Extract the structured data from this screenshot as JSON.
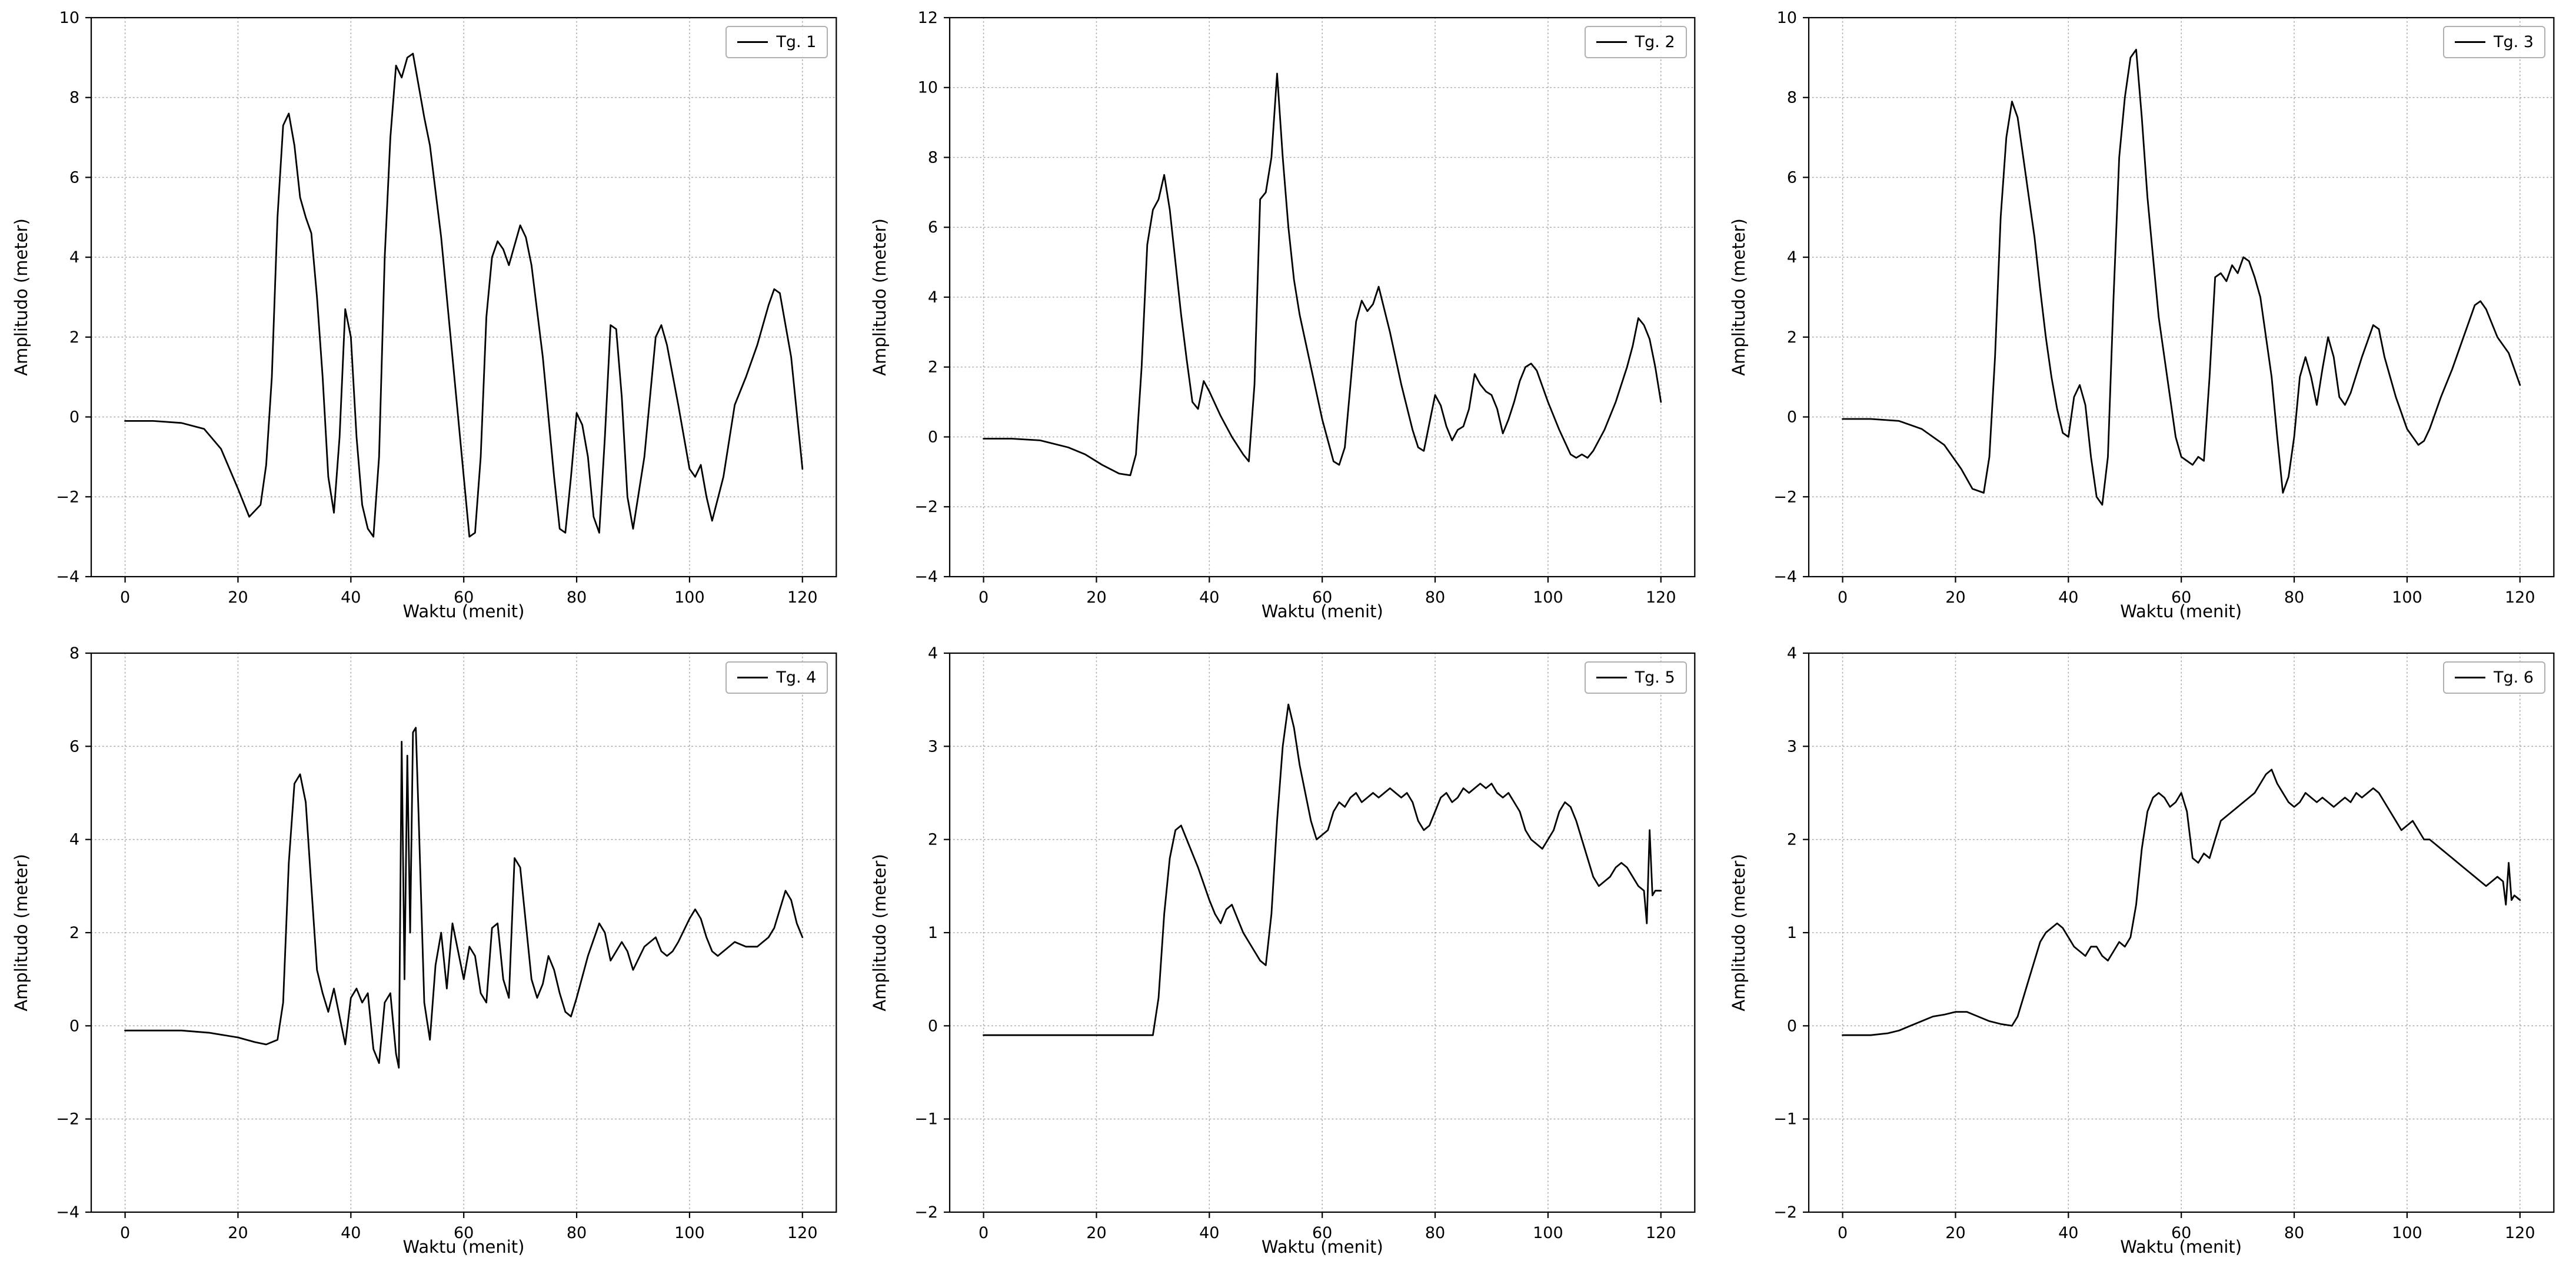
{
  "page": {
    "background": "#ffffff"
  },
  "style": {
    "line_color": "#000000",
    "grid_color": "#ababab",
    "spine_color": "#000000",
    "legend_border": "#b0b0b0"
  },
  "chart_data": [
    {
      "type": "line",
      "legend": "Tg. 1",
      "xlabel": "Waktu (menit)",
      "ylabel": "Amplitudo (meter)",
      "xlim": [
        -6,
        126
      ],
      "ylim": [
        -4,
        10
      ],
      "xticks": [
        0,
        20,
        40,
        60,
        80,
        100,
        120
      ],
      "yticks": [
        -4,
        -2,
        0,
        2,
        4,
        6,
        8,
        10
      ],
      "x": [
        0,
        5,
        10,
        14,
        17,
        20,
        22,
        24,
        25,
        26,
        27,
        28,
        29,
        30,
        31,
        32,
        33,
        34,
        35,
        36,
        37,
        38,
        39,
        40,
        41,
        42,
        43,
        44,
        45,
        46,
        47,
        48,
        49,
        50,
        51,
        52,
        53,
        54,
        56,
        58,
        60,
        61,
        62,
        63,
        64,
        65,
        66,
        67,
        68,
        69,
        70,
        71,
        72,
        74,
        76,
        77,
        78,
        79,
        80,
        81,
        82,
        83,
        84,
        85,
        86,
        87,
        88,
        89,
        90,
        92,
        94,
        95,
        96,
        98,
        100,
        101,
        102,
        103,
        104,
        106,
        108,
        110,
        112,
        114,
        115,
        116,
        118,
        120
      ],
      "y": [
        -0.1,
        -0.1,
        -0.15,
        -0.3,
        -0.8,
        -1.8,
        -2.5,
        -2.2,
        -1.2,
        1.0,
        5.0,
        7.3,
        7.6,
        6.8,
        5.5,
        5.0,
        4.6,
        3.0,
        1.0,
        -1.5,
        -2.4,
        -0.5,
        2.7,
        2.0,
        -0.5,
        -2.2,
        -2.8,
        -3.0,
        -1.0,
        4.0,
        7.0,
        8.8,
        8.5,
        9.0,
        9.1,
        8.3,
        7.5,
        6.8,
        4.5,
        1.5,
        -1.5,
        -3.0,
        -2.9,
        -1.0,
        2.5,
        4.0,
        4.4,
        4.2,
        3.8,
        4.3,
        4.8,
        4.5,
        3.8,
        1.5,
        -1.5,
        -2.8,
        -2.9,
        -1.5,
        0.1,
        -0.2,
        -1.0,
        -2.5,
        -2.9,
        -0.5,
        2.3,
        2.2,
        0.5,
        -2.0,
        -2.8,
        -1.0,
        2.0,
        2.3,
        1.8,
        0.3,
        -1.3,
        -1.5,
        -1.2,
        -2.0,
        -2.6,
        -1.5,
        0.3,
        1.0,
        1.8,
        2.8,
        3.2,
        3.1,
        1.5,
        -1.3
      ]
    },
    {
      "type": "line",
      "legend": "Tg. 2",
      "xlabel": "Waktu (menit)",
      "ylabel": "Amplitudo (meter)",
      "xlim": [
        -6,
        126
      ],
      "ylim": [
        -4,
        12
      ],
      "xticks": [
        0,
        20,
        40,
        60,
        80,
        100,
        120
      ],
      "yticks": [
        -4,
        -2,
        0,
        2,
        4,
        6,
        8,
        10,
        12
      ],
      "x": [
        0,
        5,
        10,
        15,
        18,
        21,
        24,
        26,
        27,
        28,
        29,
        30,
        31,
        32,
        33,
        34,
        35,
        36,
        37,
        38,
        39,
        40,
        42,
        44,
        46,
        47,
        48,
        49,
        50,
        51,
        52,
        53,
        54,
        55,
        56,
        58,
        60,
        62,
        63,
        64,
        65,
        66,
        67,
        68,
        69,
        70,
        72,
        74,
        76,
        77,
        78,
        79,
        80,
        81,
        82,
        83,
        84,
        85,
        86,
        87,
        88,
        89,
        90,
        91,
        92,
        93,
        94,
        95,
        96,
        97,
        98,
        100,
        102,
        104,
        105,
        106,
        107,
        108,
        110,
        112,
        114,
        115,
        116,
        117,
        118,
        119,
        120
      ],
      "y": [
        -0.05,
        -0.05,
        -0.1,
        -0.3,
        -0.5,
        -0.8,
        -1.05,
        -1.1,
        -0.5,
        2.0,
        5.5,
        6.5,
        6.8,
        7.5,
        6.5,
        5.0,
        3.5,
        2.2,
        1.0,
        0.8,
        1.6,
        1.3,
        0.6,
        0.0,
        -0.5,
        -0.7,
        1.5,
        6.8,
        7.0,
        8.0,
        10.4,
        8.0,
        6.0,
        4.5,
        3.5,
        2.0,
        0.5,
        -0.7,
        -0.8,
        -0.3,
        1.5,
        3.3,
        3.9,
        3.6,
        3.8,
        4.3,
        3.0,
        1.5,
        0.2,
        -0.3,
        -0.4,
        0.4,
        1.2,
        0.9,
        0.3,
        -0.1,
        0.2,
        0.3,
        0.8,
        1.8,
        1.5,
        1.3,
        1.2,
        0.8,
        0.1,
        0.5,
        1.0,
        1.6,
        2.0,
        2.1,
        1.9,
        1.0,
        0.2,
        -0.5,
        -0.6,
        -0.5,
        -0.6,
        -0.4,
        0.2,
        1.0,
        2.0,
        2.6,
        3.4,
        3.2,
        2.8,
        2.0,
        1.0
      ]
    },
    {
      "type": "line",
      "legend": "Tg. 3",
      "xlabel": "Waktu (menit)",
      "ylabel": "Amplitudo (meter)",
      "xlim": [
        -6,
        126
      ],
      "ylim": [
        -4,
        10
      ],
      "xticks": [
        0,
        20,
        40,
        60,
        80,
        100,
        120
      ],
      "yticks": [
        -4,
        -2,
        0,
        2,
        4,
        6,
        8,
        10
      ],
      "x": [
        0,
        5,
        10,
        14,
        18,
        21,
        23,
        25,
        26,
        27,
        28,
        29,
        30,
        31,
        32,
        33,
        34,
        35,
        36,
        37,
        38,
        39,
        40,
        41,
        42,
        43,
        44,
        45,
        46,
        47,
        48,
        49,
        50,
        51,
        52,
        53,
        54,
        55,
        56,
        58,
        59,
        60,
        61,
        62,
        63,
        64,
        65,
        66,
        67,
        68,
        69,
        70,
        71,
        72,
        73,
        74,
        76,
        77,
        78,
        79,
        80,
        81,
        82,
        83,
        84,
        85,
        86,
        87,
        88,
        89,
        90,
        92,
        94,
        95,
        96,
        98,
        100,
        102,
        103,
        104,
        106,
        108,
        110,
        112,
        113,
        114,
        116,
        118,
        120
      ],
      "y": [
        -0.05,
        -0.05,
        -0.1,
        -0.3,
        -0.7,
        -1.3,
        -1.8,
        -1.9,
        -1.0,
        1.5,
        5.0,
        7.0,
        7.9,
        7.5,
        6.5,
        5.5,
        4.5,
        3.2,
        2.0,
        1.0,
        0.2,
        -0.4,
        -0.5,
        0.5,
        0.8,
        0.3,
        -1.0,
        -2.0,
        -2.2,
        -1.0,
        3.0,
        6.5,
        8.0,
        9.0,
        9.2,
        7.5,
        5.5,
        4.0,
        2.5,
        0.5,
        -0.5,
        -1.0,
        -1.1,
        -1.2,
        -1.0,
        -1.1,
        1.0,
        3.5,
        3.6,
        3.4,
        3.8,
        3.6,
        4.0,
        3.9,
        3.5,
        3.0,
        1.0,
        -0.5,
        -1.9,
        -1.5,
        -0.5,
        1.0,
        1.5,
        1.0,
        0.3,
        1.2,
        2.0,
        1.5,
        0.5,
        0.3,
        0.6,
        1.5,
        2.3,
        2.2,
        1.5,
        0.5,
        -0.3,
        -0.7,
        -0.6,
        -0.3,
        0.5,
        1.2,
        2.0,
        2.8,
        2.9,
        2.7,
        2.0,
        1.6,
        0.8
      ]
    },
    {
      "type": "line",
      "legend": "Tg. 4",
      "xlabel": "Waktu (menit)",
      "ylabel": "Amplitudo (meter)",
      "xlim": [
        -6,
        126
      ],
      "ylim": [
        -4,
        8
      ],
      "xticks": [
        0,
        20,
        40,
        60,
        80,
        100,
        120
      ],
      "yticks": [
        -4,
        -2,
        0,
        2,
        4,
        6,
        8
      ],
      "x": [
        0,
        5,
        10,
        15,
        20,
        23,
        25,
        27,
        28,
        29,
        30,
        31,
        32,
        33,
        34,
        35,
        36,
        37,
        38,
        39,
        40,
        41,
        42,
        43,
        44,
        45,
        46,
        47,
        48,
        48.5,
        49,
        49.5,
        50,
        50.5,
        51,
        51.5,
        52,
        52.5,
        53,
        54,
        55,
        56,
        57,
        58,
        59,
        60,
        61,
        62,
        63,
        64,
        65,
        66,
        67,
        68,
        69,
        70,
        71,
        72,
        73,
        74,
        75,
        76,
        77,
        78,
        79,
        80,
        82,
        84,
        85,
        86,
        87,
        88,
        89,
        90,
        92,
        94,
        95,
        96,
        97,
        98,
        100,
        101,
        102,
        103,
        104,
        105,
        106,
        108,
        110,
        112,
        113,
        114,
        115,
        116,
        117,
        118,
        119,
        120
      ],
      "y": [
        -0.1,
        -0.1,
        -0.1,
        -0.15,
        -0.25,
        -0.35,
        -0.4,
        -0.3,
        0.5,
        3.5,
        5.2,
        5.4,
        4.8,
        3.0,
        1.2,
        0.7,
        0.3,
        0.8,
        0.2,
        -0.4,
        0.6,
        0.8,
        0.5,
        0.7,
        -0.5,
        -0.8,
        0.5,
        0.7,
        -0.6,
        -0.9,
        6.1,
        1.0,
        5.8,
        2.0,
        6.3,
        6.4,
        4.5,
        2.5,
        0.5,
        -0.3,
        1.3,
        2.0,
        0.8,
        2.2,
        1.6,
        1.0,
        1.7,
        1.5,
        0.7,
        0.5,
        2.1,
        2.2,
        1.0,
        0.6,
        3.6,
        3.4,
        2.2,
        1.0,
        0.6,
        0.9,
        1.5,
        1.2,
        0.7,
        0.3,
        0.2,
        0.6,
        1.5,
        2.2,
        2.0,
        1.4,
        1.6,
        1.8,
        1.6,
        1.2,
        1.7,
        1.9,
        1.6,
        1.5,
        1.6,
        1.8,
        2.3,
        2.5,
        2.3,
        1.9,
        1.6,
        1.5,
        1.6,
        1.8,
        1.7,
        1.7,
        1.8,
        1.9,
        2.1,
        2.5,
        2.9,
        2.7,
        2.2,
        1.9
      ]
    },
    {
      "type": "line",
      "legend": "Tg. 5",
      "xlabel": "Waktu (menit)",
      "ylabel": "Amplitudo (meter)",
      "xlim": [
        -6,
        126
      ],
      "ylim": [
        -2,
        4
      ],
      "xticks": [
        0,
        20,
        40,
        60,
        80,
        100,
        120
      ],
      "yticks": [
        -2,
        -1,
        0,
        1,
        2,
        3,
        4
      ],
      "x": [
        0,
        5,
        10,
        15,
        20,
        25,
        28,
        30,
        31,
        32,
        33,
        34,
        35,
        36,
        38,
        40,
        41,
        42,
        43,
        44,
        45,
        46,
        48,
        49,
        50,
        51,
        52,
        53,
        54,
        55,
        56,
        57,
        58,
        59,
        60,
        61,
        62,
        63,
        64,
        65,
        66,
        67,
        68,
        69,
        70,
        71,
        72,
        73,
        74,
        75,
        76,
        77,
        78,
        79,
        80,
        81,
        82,
        83,
        84,
        85,
        86,
        87,
        88,
        89,
        90,
        91,
        92,
        93,
        94,
        95,
        96,
        97,
        98,
        99,
        100,
        101,
        102,
        103,
        104,
        105,
        106,
        107,
        108,
        109,
        110,
        111,
        112,
        113,
        114,
        115,
        116,
        117,
        117.5,
        118,
        118.5,
        119,
        120
      ],
      "y": [
        -0.1,
        -0.1,
        -0.1,
        -0.1,
        -0.1,
        -0.1,
        -0.1,
        -0.1,
        0.3,
        1.2,
        1.8,
        2.1,
        2.15,
        2.0,
        1.7,
        1.35,
        1.2,
        1.1,
        1.25,
        1.3,
        1.15,
        1.0,
        0.8,
        0.7,
        0.65,
        1.2,
        2.2,
        3.0,
        3.45,
        3.2,
        2.8,
        2.5,
        2.2,
        2.0,
        2.05,
        2.1,
        2.3,
        2.4,
        2.35,
        2.45,
        2.5,
        2.4,
        2.45,
        2.5,
        2.45,
        2.5,
        2.55,
        2.5,
        2.45,
        2.5,
        2.4,
        2.2,
        2.1,
        2.15,
        2.3,
        2.45,
        2.5,
        2.4,
        2.45,
        2.55,
        2.5,
        2.55,
        2.6,
        2.55,
        2.6,
        2.5,
        2.45,
        2.5,
        2.4,
        2.3,
        2.1,
        2.0,
        1.95,
        1.9,
        2.0,
        2.1,
        2.3,
        2.4,
        2.35,
        2.2,
        2.0,
        1.8,
        1.6,
        1.5,
        1.55,
        1.6,
        1.7,
        1.75,
        1.7,
        1.6,
        1.5,
        1.45,
        1.1,
        2.1,
        1.4,
        1.45,
        1.45
      ]
    },
    {
      "type": "line",
      "legend": "Tg. 6",
      "xlabel": "Waktu (menit)",
      "ylabel": "Amplitudo (meter)",
      "xlim": [
        -6,
        126
      ],
      "ylim": [
        -2,
        4
      ],
      "xticks": [
        0,
        20,
        40,
        60,
        80,
        100,
        120
      ],
      "yticks": [
        -2,
        -1,
        0,
        1,
        2,
        3,
        4
      ],
      "x": [
        0,
        3,
        5,
        8,
        10,
        12,
        14,
        16,
        18,
        20,
        22,
        24,
        26,
        28,
        30,
        31,
        32,
        33,
        34,
        35,
        36,
        37,
        38,
        39,
        40,
        41,
        42,
        43,
        44,
        45,
        46,
        47,
        48,
        49,
        50,
        51,
        52,
        53,
        54,
        55,
        56,
        57,
        58,
        59,
        60,
        61,
        62,
        63,
        64,
        65,
        66,
        67,
        68,
        69,
        70,
        71,
        72,
        73,
        74,
        75,
        76,
        77,
        78,
        79,
        80,
        81,
        82,
        83,
        84,
        85,
        86,
        87,
        88,
        89,
        90,
        91,
        92,
        93,
        94,
        95,
        96,
        97,
        98,
        99,
        100,
        101,
        102,
        103,
        104,
        105,
        106,
        107,
        108,
        109,
        110,
        111,
        112,
        113,
        114,
        115,
        116,
        117,
        117.5,
        118,
        118.5,
        119,
        120
      ],
      "y": [
        -0.1,
        -0.1,
        -0.1,
        -0.08,
        -0.05,
        0.0,
        0.05,
        0.1,
        0.12,
        0.15,
        0.15,
        0.1,
        0.05,
        0.02,
        0.0,
        0.1,
        0.3,
        0.5,
        0.7,
        0.9,
        1.0,
        1.05,
        1.1,
        1.05,
        0.95,
        0.85,
        0.8,
        0.75,
        0.85,
        0.85,
        0.75,
        0.7,
        0.8,
        0.9,
        0.85,
        0.95,
        1.3,
        1.9,
        2.3,
        2.45,
        2.5,
        2.45,
        2.35,
        2.4,
        2.5,
        2.3,
        1.8,
        1.75,
        1.85,
        1.8,
        2.0,
        2.2,
        2.25,
        2.3,
        2.35,
        2.4,
        2.45,
        2.5,
        2.6,
        2.7,
        2.75,
        2.6,
        2.5,
        2.4,
        2.35,
        2.4,
        2.5,
        2.45,
        2.4,
        2.45,
        2.4,
        2.35,
        2.4,
        2.45,
        2.4,
        2.5,
        2.45,
        2.5,
        2.55,
        2.5,
        2.4,
        2.3,
        2.2,
        2.1,
        2.15,
        2.2,
        2.1,
        2.0,
        2.0,
        1.95,
        1.9,
        1.85,
        1.8,
        1.75,
        1.7,
        1.65,
        1.6,
        1.55,
        1.5,
        1.55,
        1.6,
        1.55,
        1.3,
        1.75,
        1.35,
        1.4,
        1.35
      ]
    }
  ]
}
